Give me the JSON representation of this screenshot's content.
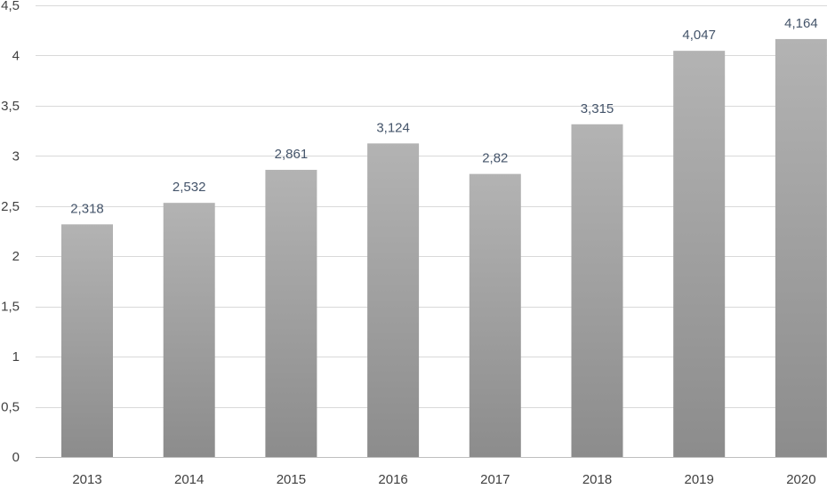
{
  "chart_data": {
    "type": "bar",
    "title": "",
    "xlabel": "",
    "ylabel": "",
    "categories": [
      "2013",
      "2014",
      "2015",
      "2016",
      "2017",
      "2018",
      "2019",
      "2020"
    ],
    "values": [
      2.318,
      2.532,
      2.861,
      3.124,
      2.82,
      3.315,
      4.047,
      4.164
    ],
    "data_labels": [
      "2,318",
      "2,532",
      "2,861",
      "3,124",
      "2,82",
      "3,315",
      "4,047",
      "4,164"
    ],
    "ylim": [
      0,
      4.5
    ],
    "y_ticks": [
      0,
      0.5,
      1,
      1.5,
      2,
      2.5,
      3,
      3.5,
      4,
      4.5
    ],
    "y_tick_labels": [
      "0",
      "0,5",
      "1",
      "1,5",
      "2",
      "2,5",
      "3",
      "3,5",
      "4",
      "4,5"
    ],
    "grid": true,
    "legend": "none",
    "colors": {
      "bar_top": "#b3b3b3",
      "bar_bottom": "#8c8c8c",
      "gridline": "#d9d9d9",
      "tick_text": "#404040",
      "data_label_text": "#44546a"
    }
  }
}
